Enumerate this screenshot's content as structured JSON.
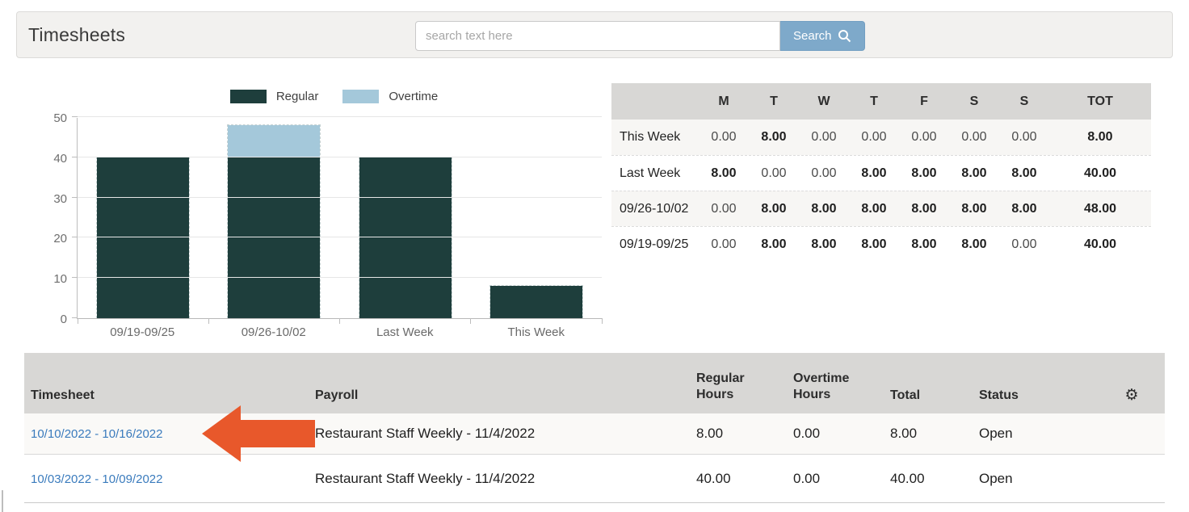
{
  "header": {
    "title": "Timesheets",
    "search_placeholder": "search text here",
    "search_button_label": "Search",
    "search_button_color": "#7ea9ca"
  },
  "chart_data": {
    "type": "bar",
    "stacked": true,
    "categories": [
      "09/19-09/25",
      "09/26-10/02",
      "Last Week",
      "This Week"
    ],
    "series": [
      {
        "name": "Regular",
        "color": "#1e3e3c",
        "values": [
          40,
          40,
          40,
          8
        ]
      },
      {
        "name": "Overtime",
        "color": "#a4c8da",
        "values": [
          0,
          8,
          0,
          0
        ]
      }
    ],
    "ylim": [
      0,
      50
    ],
    "yticks": [
      0,
      10,
      20,
      30,
      40,
      50
    ],
    "legend_position": "top",
    "grid": true
  },
  "week_table": {
    "columns": [
      "",
      "M",
      "T",
      "W",
      "T",
      "F",
      "S",
      "S",
      "TOT"
    ],
    "rows": [
      {
        "label": "This Week",
        "values": [
          "0.00",
          "8.00",
          "0.00",
          "0.00",
          "0.00",
          "0.00",
          "0.00",
          "8.00"
        ]
      },
      {
        "label": "Last Week",
        "values": [
          "8.00",
          "0.00",
          "0.00",
          "8.00",
          "8.00",
          "8.00",
          "8.00",
          "40.00"
        ]
      },
      {
        "label": "09/26-10/02",
        "values": [
          "0.00",
          "8.00",
          "8.00",
          "8.00",
          "8.00",
          "8.00",
          "8.00",
          "48.00"
        ]
      },
      {
        "label": "09/19-09/25",
        "values": [
          "0.00",
          "8.00",
          "8.00",
          "8.00",
          "8.00",
          "8.00",
          "0.00",
          "40.00"
        ]
      }
    ]
  },
  "timesheet_table": {
    "columns": [
      "Timesheet",
      "Payroll",
      "Regular Hours",
      "Overtime Hours",
      "Total",
      "Status"
    ],
    "gear_icon": "⚙",
    "rows": [
      {
        "timesheet": "10/10/2022 - 10/16/2022",
        "payroll": "Restaurant Staff Weekly - 11/4/2022",
        "regular": "8.00",
        "overtime": "0.00",
        "total": "8.00",
        "status": "Open"
      },
      {
        "timesheet": "10/03/2022 - 10/09/2022",
        "payroll": "Restaurant Staff Weekly - 11/4/2022",
        "regular": "40.00",
        "overtime": "0.00",
        "total": "40.00",
        "status": "Open"
      }
    ]
  },
  "annotation": {
    "arrow_color": "#e8582b"
  }
}
